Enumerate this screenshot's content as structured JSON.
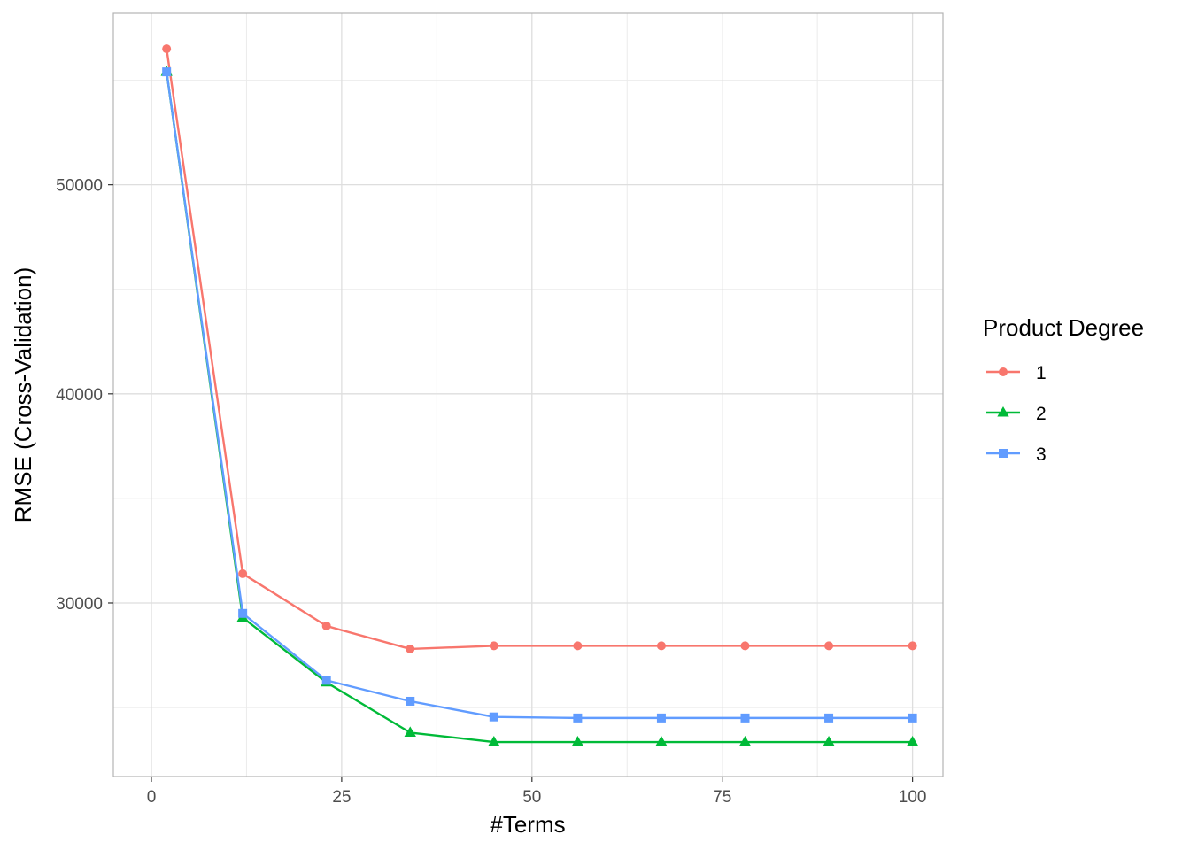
{
  "chart_data": {
    "type": "line",
    "xlabel": "#Terms",
    "ylabel": "RMSE (Cross-Validation)",
    "xlim": [
      -5,
      104
    ],
    "ylim": [
      21700,
      58200
    ],
    "x_ticks": [
      0,
      25,
      50,
      75,
      100
    ],
    "x_tick_labels": [
      "0",
      "25",
      "50",
      "75",
      "100"
    ],
    "y_ticks": [
      30000,
      40000,
      50000
    ],
    "y_tick_labels": [
      "30000",
      "40000",
      "50000"
    ],
    "grid": true,
    "legend": {
      "title": "Product Degree",
      "position": "right"
    },
    "x": [
      2,
      12,
      23,
      34,
      45,
      56,
      67,
      78,
      89,
      100
    ],
    "series": [
      {
        "name": "1",
        "marker": "circle",
        "color": "#F8766D",
        "values": [
          56500,
          31400,
          28900,
          27800,
          27950,
          27950,
          27950,
          27950,
          27950,
          27950
        ]
      },
      {
        "name": "2",
        "marker": "triangle",
        "color": "#00BA38",
        "values": [
          55400,
          29300,
          26200,
          23800,
          23350,
          23350,
          23350,
          23350,
          23350,
          23350
        ]
      },
      {
        "name": "3",
        "marker": "square",
        "color": "#619CFF",
        "values": [
          55400,
          29500,
          26300,
          25300,
          24550,
          24500,
          24500,
          24500,
          24500,
          24500
        ]
      }
    ]
  }
}
